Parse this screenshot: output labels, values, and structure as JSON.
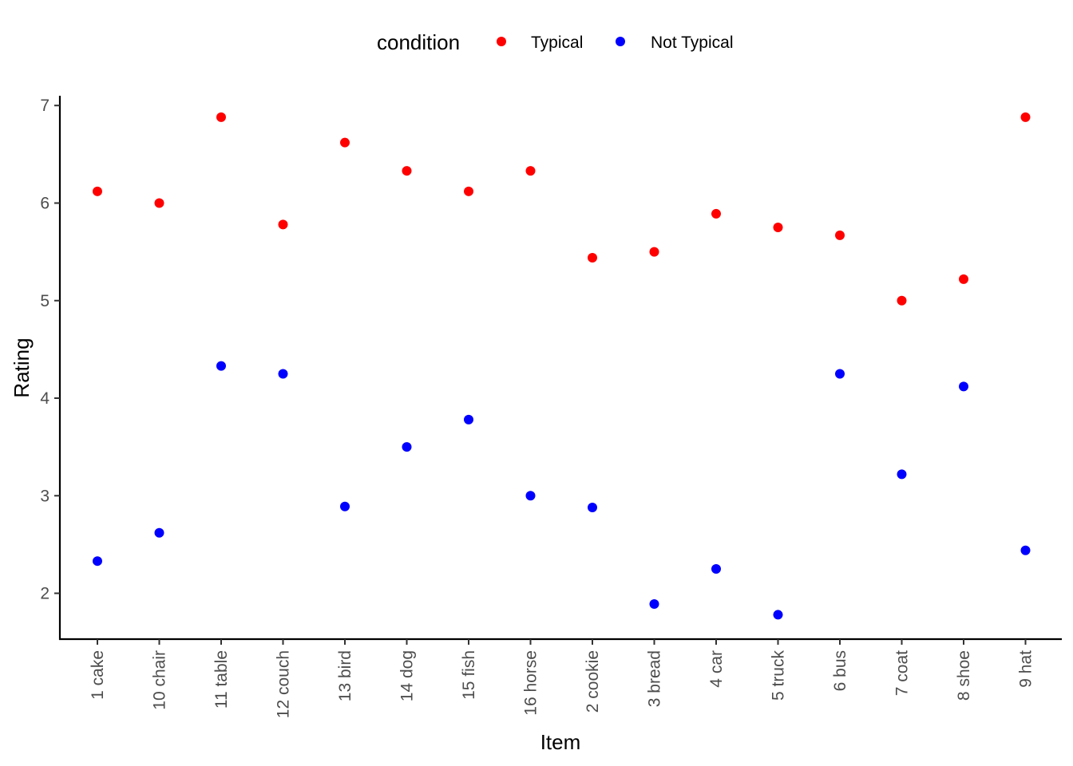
{
  "chart_data": {
    "type": "scatter",
    "xlabel": "Item",
    "ylabel": "Rating",
    "ylim": [
      1.53,
      7.1
    ],
    "yticks": [
      2,
      3,
      4,
      5,
      6,
      7
    ],
    "grid": false,
    "legend": {
      "title": "condition",
      "position": "top"
    },
    "categories": [
      "1 cake",
      "10 chair",
      "11 table",
      "12 couch",
      "13 bird",
      "14 dog",
      "15 fish",
      "16 horse",
      "2 cookie",
      "3 bread",
      "4 car",
      "5 truck",
      "6 bus",
      "7 coat",
      "8 shoe",
      "9 hat"
    ],
    "series": [
      {
        "name": "Typical",
        "color": "#ff0000",
        "values": [
          6.12,
          6.0,
          6.88,
          5.78,
          6.62,
          6.33,
          6.12,
          6.33,
          5.44,
          5.5,
          5.89,
          5.75,
          5.67,
          5.0,
          5.22,
          6.88
        ]
      },
      {
        "name": "Not Typical",
        "color": "#0000ff",
        "values": [
          2.33,
          2.62,
          4.33,
          4.25,
          2.89,
          3.5,
          3.78,
          3.0,
          2.88,
          1.89,
          2.25,
          1.78,
          4.25,
          3.22,
          4.12,
          2.44
        ]
      }
    ]
  }
}
